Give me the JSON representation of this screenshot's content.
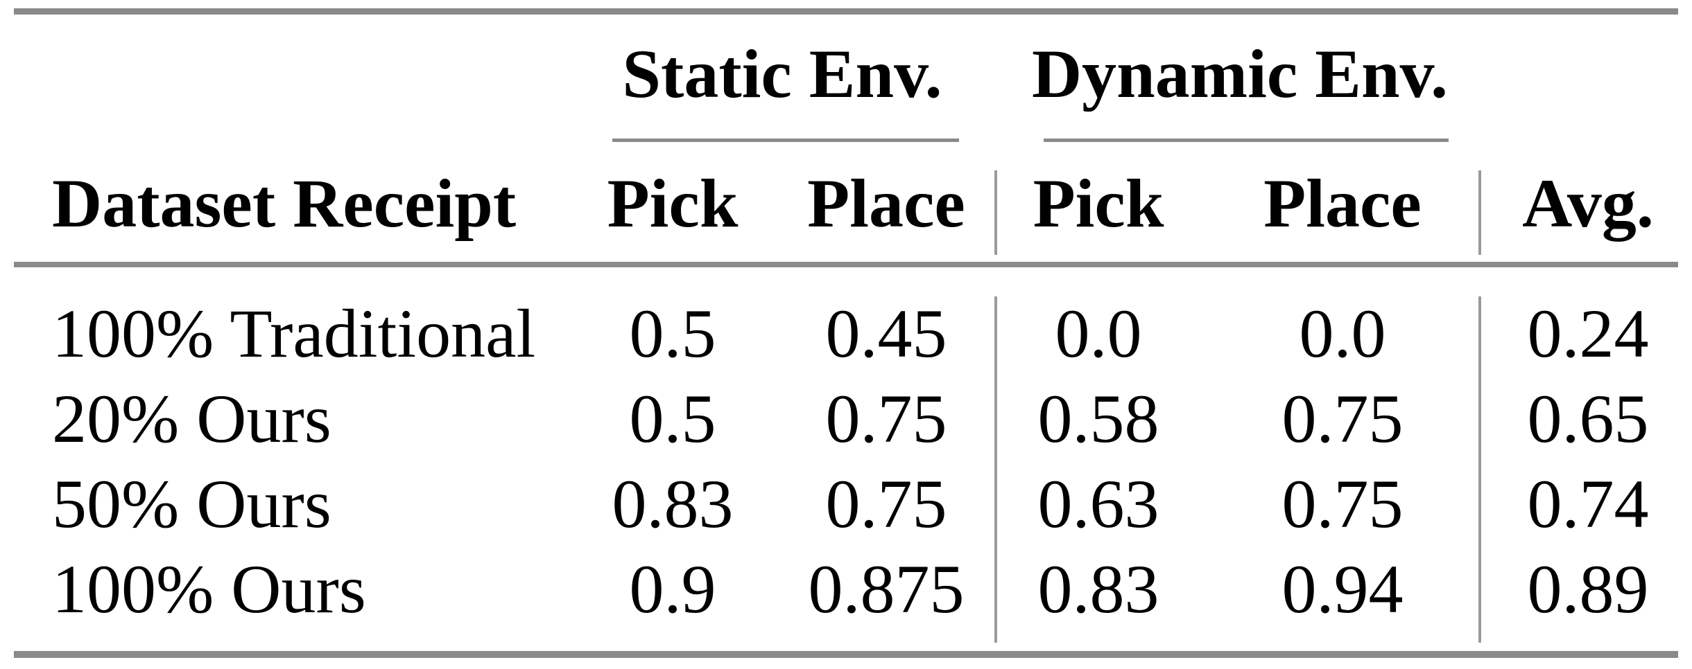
{
  "table": {
    "column_groups": [
      {
        "label": "Static Env."
      },
      {
        "label": "Dynamic Env."
      }
    ],
    "headers": {
      "row_label": "Dataset Receipt",
      "static_pick": "Pick",
      "static_place": "Place",
      "dynamic_pick": "Pick",
      "dynamic_place": "Place",
      "avg": "Avg."
    },
    "rows": [
      {
        "label": "100% Traditional",
        "values": [
          "0.5",
          "0.45",
          "0.0",
          "0.0",
          "0.24"
        ]
      },
      {
        "label": "20% Ours",
        "values": [
          "0.5",
          "0.75",
          "0.58",
          "0.75",
          "0.65"
        ]
      },
      {
        "label": "50% Ours",
        "values": [
          "0.83",
          "0.75",
          "0.63",
          "0.75",
          "0.74"
        ]
      },
      {
        "label": "100% Ours",
        "values": [
          "0.9",
          "0.875",
          "0.83",
          "0.94",
          "0.89"
        ]
      }
    ]
  },
  "chart_data": {
    "type": "table",
    "title": "",
    "column_groups": [
      "Static Env.",
      "Dynamic Env."
    ],
    "columns": [
      "Dataset Receipt",
      "Static Pick",
      "Static Place",
      "Dynamic Pick",
      "Dynamic Place",
      "Avg."
    ],
    "rows": [
      {
        "label": "100% Traditional",
        "static_pick": 0.5,
        "static_place": 0.45,
        "dynamic_pick": 0.0,
        "dynamic_place": 0.0,
        "avg": 0.24
      },
      {
        "label": "20% Ours",
        "static_pick": 0.5,
        "static_place": 0.75,
        "dynamic_pick": 0.58,
        "dynamic_place": 0.75,
        "avg": 0.65
      },
      {
        "label": "50% Ours",
        "static_pick": 0.83,
        "static_place": 0.75,
        "dynamic_pick": 0.63,
        "dynamic_place": 0.75,
        "avg": 0.74
      },
      {
        "label": "100% Ours",
        "static_pick": 0.9,
        "static_place": 0.875,
        "dynamic_pick": 0.83,
        "dynamic_place": 0.94,
        "avg": 0.89
      }
    ]
  },
  "colors": {
    "rule_gray": "#8a8a8a",
    "divider_gray": "#9a9a9a",
    "text": "#000000",
    "background": "#ffffff"
  }
}
